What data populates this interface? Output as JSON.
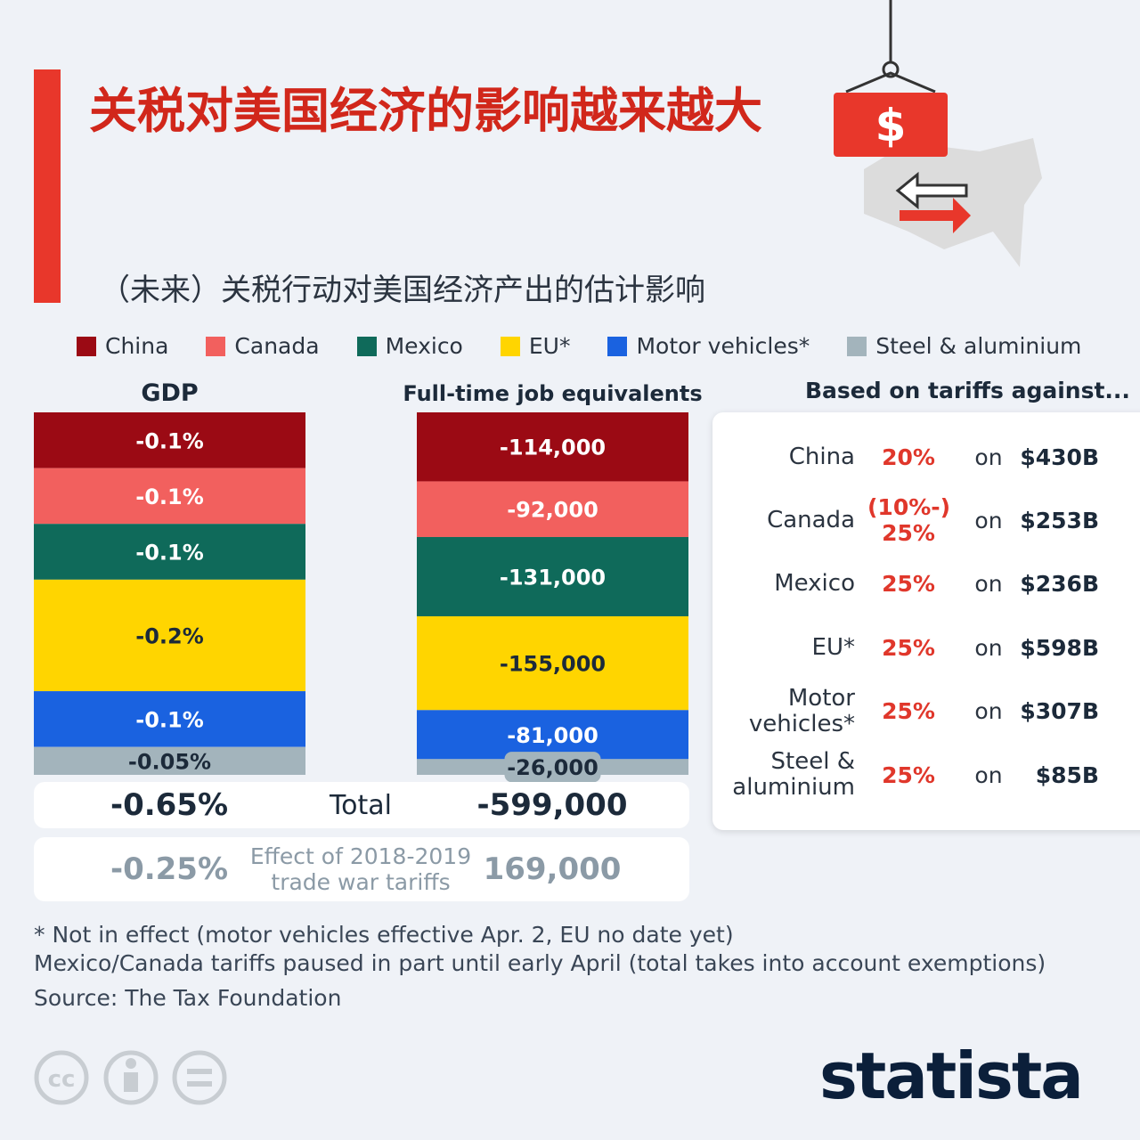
{
  "title": "关税对美国经济的影响越来越大",
  "subtitle": "（未来）关税行动对美国经济产出的估计影响",
  "chart_data": {
    "type": "stacked-bar",
    "categories": [
      "GDP",
      "Full-time job equivalents"
    ],
    "series": [
      {
        "name": "China",
        "color": "#9b0a14",
        "values": [
          -0.1,
          -114000
        ],
        "value_labels": [
          "-0.1%",
          "-114,000"
        ]
      },
      {
        "name": "Canada",
        "color": "#f2605e",
        "values": [
          -0.1,
          -92000
        ],
        "value_labels": [
          "-0.1%",
          "-92,000"
        ]
      },
      {
        "name": "Mexico",
        "color": "#0f6a5a",
        "values": [
          -0.1,
          -131000
        ],
        "value_labels": [
          "-0.1%",
          "-131,000"
        ]
      },
      {
        "name": "EU*",
        "color": "#ffd500",
        "values": [
          -0.2,
          -155000
        ],
        "value_labels": [
          "-0.2%",
          "-155,000"
        ]
      },
      {
        "name": "Motor vehicles*",
        "color": "#1a62e0",
        "values": [
          -0.1,
          -81000
        ],
        "value_labels": [
          "-0.1%",
          "-81,000"
        ]
      },
      {
        "name": "Steel & aluminium",
        "color": "#a3b4bc",
        "values": [
          -0.05,
          -26000
        ],
        "value_labels": [
          "-0.05%",
          "-26,000"
        ]
      }
    ],
    "totals": [
      {
        "label": "Total",
        "values": [
          -0.65,
          -599000
        ],
        "value_labels": [
          "-0.65%",
          "-599,000"
        ]
      },
      {
        "label": "Effect of 2018-2019 trade war tariffs",
        "values": [
          -0.25,
          169000
        ],
        "value_labels": [
          "-0.25%",
          "169,000"
        ]
      }
    ]
  },
  "tariffs": {
    "title": "Based on tariffs against...",
    "rows": [
      {
        "country": "China",
        "rate": "20%",
        "on": "on",
        "amount": "$430B"
      },
      {
        "country": "Canada",
        "rate": "(10%-) 25%",
        "on": "on",
        "amount": "$253B"
      },
      {
        "country": "Mexico",
        "rate": "25%",
        "on": "on",
        "amount": "$236B"
      },
      {
        "country": "EU*",
        "rate": "25%",
        "on": "on",
        "amount": "$598B"
      },
      {
        "country": "Motor vehicles*",
        "rate": "25%",
        "on": "on",
        "amount": "$307B"
      },
      {
        "country": "Steel & aluminium",
        "rate": "25%",
        "on": "on",
        "amount": "$85B"
      }
    ]
  },
  "notes": [
    "* Not in effect (motor vehicles effective Apr. 2, EU no date yet)",
    "Mexico/Canada tariffs paused in part until early April (total takes into account exemptions)"
  ],
  "source": "Source: The Tax Foundation",
  "brand": "statista"
}
